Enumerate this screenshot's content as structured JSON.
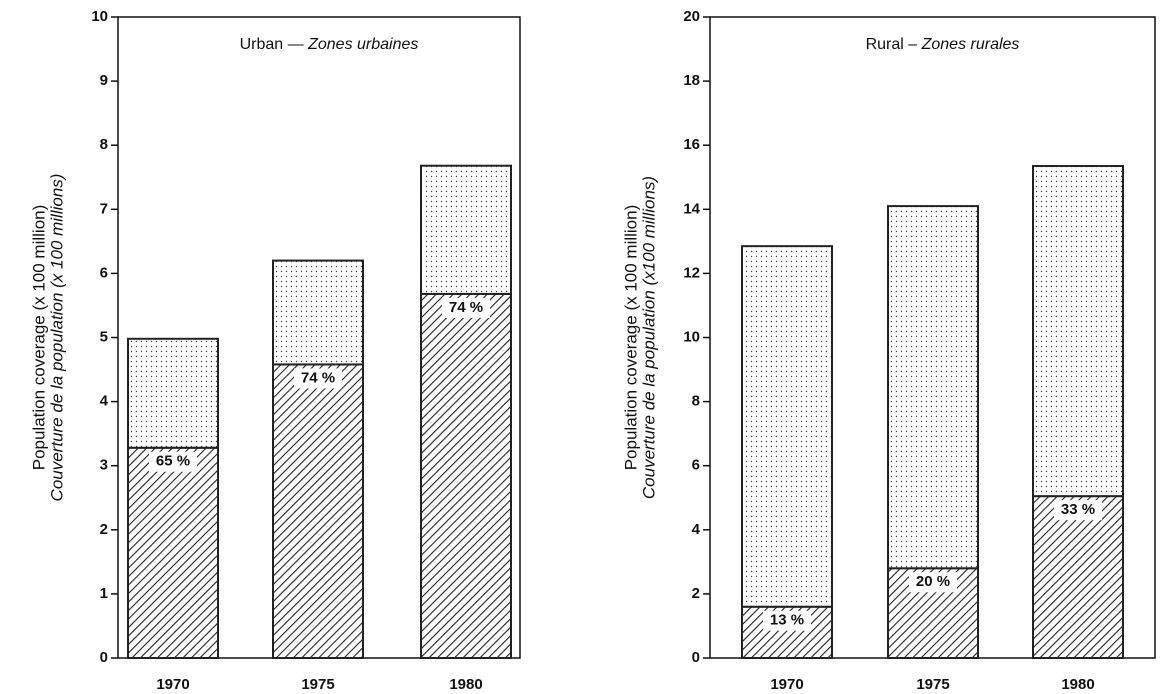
{
  "chart_data": [
    {
      "type": "stacked_bar",
      "title": "Urban —",
      "title_fr": "Zones urbaines",
      "ylabel": "Population coverage (x 100  million)",
      "ylabel_fr": "Couverture de la population (x 100 millions)",
      "categories": [
        "1970",
        "1975",
        "1980"
      ],
      "series": [
        {
          "color": "#222222",
          "pattern": "hatch",
          "values": [
            3.28,
            4.58,
            5.68
          ]
        },
        {
          "color": "#222222",
          "pattern": "dots",
          "values": [
            1.7,
            1.62,
            2.0
          ]
        }
      ],
      "coverage_percent": {
        "values": [
          65,
          74,
          74
        ],
        "value_labels": [
          "65 %",
          "74 %",
          "74 %"
        ]
      },
      "ylim": [
        0,
        10
      ],
      "yticks": [
        0,
        1,
        2,
        3,
        4,
        5,
        6,
        7,
        8,
        9,
        10
      ]
    },
    {
      "type": "stacked_bar",
      "title": "Rural –",
      "title_fr": "Zones rurales",
      "ylabel": "Population coverage (x 100  million)",
      "ylabel_fr": "Couverture de la population (x100 millions)",
      "categories": [
        "1970",
        "1975",
        "1980"
      ],
      "series": [
        {
          "color": "#222222",
          "pattern": "hatch",
          "values": [
            1.6,
            2.8,
            5.05
          ]
        },
        {
          "color": "#222222",
          "pattern": "dots",
          "values": [
            11.25,
            11.3,
            10.3
          ]
        }
      ],
      "coverage_percent": {
        "values": [
          13,
          20,
          33
        ],
        "value_labels": [
          "13 %",
          "20 %",
          "33 %"
        ]
      },
      "ylim": [
        0,
        20
      ],
      "yticks": [
        0,
        2,
        4,
        6,
        8,
        10,
        12,
        14,
        16,
        18,
        20
      ]
    }
  ]
}
